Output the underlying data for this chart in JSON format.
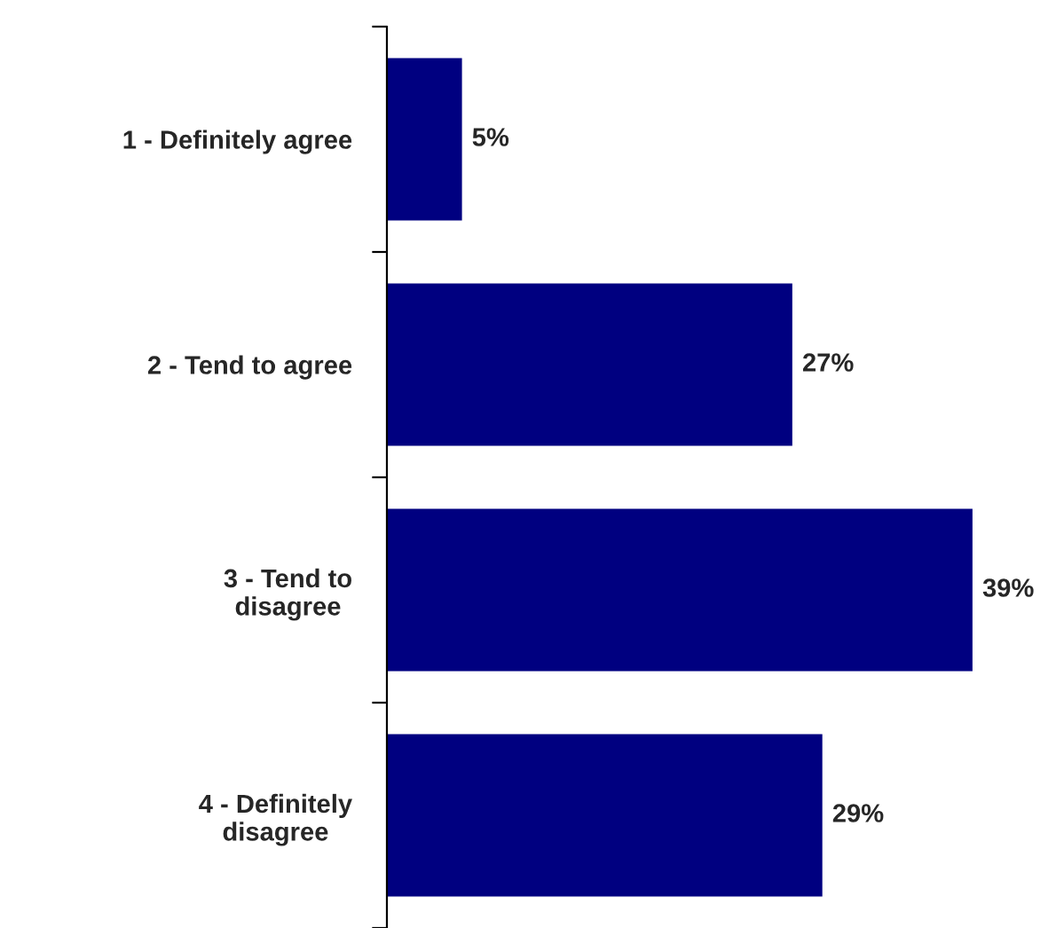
{
  "chart_data": {
    "type": "bar",
    "orientation": "horizontal",
    "categories": [
      "1 - Definitely agree",
      "2 - Tend to agree",
      "3 - Tend to\ndisagree",
      "4 - Definitely\ndisagree"
    ],
    "values": [
      5,
      27,
      39,
      29
    ],
    "value_labels": [
      "5%",
      "27%",
      "39%",
      "29%"
    ],
    "color": "#000080",
    "grid": false,
    "legend": false,
    "tick_labels": "y"
  }
}
